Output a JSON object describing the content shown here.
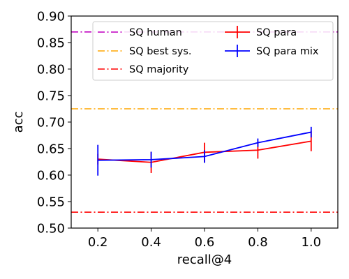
{
  "chart_data": {
    "type": "line",
    "xlabel": "recall@4",
    "ylabel": "acc",
    "xlim": [
      0.1,
      1.1
    ],
    "ylim": [
      0.5,
      0.9
    ],
    "x_ticks": [
      "0.2",
      "0.4",
      "0.6",
      "0.8",
      "1.0"
    ],
    "y_ticks": [
      "0.50",
      "0.55",
      "0.60",
      "0.65",
      "0.70",
      "0.75",
      "0.80",
      "0.85",
      "0.90"
    ],
    "grid": false,
    "legend_position": "top-right",
    "reference_lines": [
      {
        "name": "SQ human",
        "y": 0.87,
        "color": "#c000c0",
        "style": "dash-dot"
      },
      {
        "name": "SQ best sys.",
        "y": 0.725,
        "color": "#ffa500",
        "style": "dash-dot"
      },
      {
        "name": "SQ majority",
        "y": 0.53,
        "color": "#ff0000",
        "style": "dash-dot"
      }
    ],
    "series": [
      {
        "name": "SQ para",
        "color": "#ff0000",
        "x": [
          0.2,
          0.4,
          0.6,
          0.8,
          1.0
        ],
        "y": [
          0.63,
          0.624,
          0.643,
          0.647,
          0.664
        ],
        "err": [
          0.01,
          0.02,
          0.018,
          0.016,
          0.019
        ]
      },
      {
        "name": "SQ para mix",
        "color": "#0000ff",
        "x": [
          0.2,
          0.4,
          0.6,
          0.8,
          1.0
        ],
        "y": [
          0.628,
          0.629,
          0.635,
          0.661,
          0.681
        ],
        "err": [
          0.029,
          0.015,
          0.012,
          0.008,
          0.01
        ]
      }
    ]
  }
}
